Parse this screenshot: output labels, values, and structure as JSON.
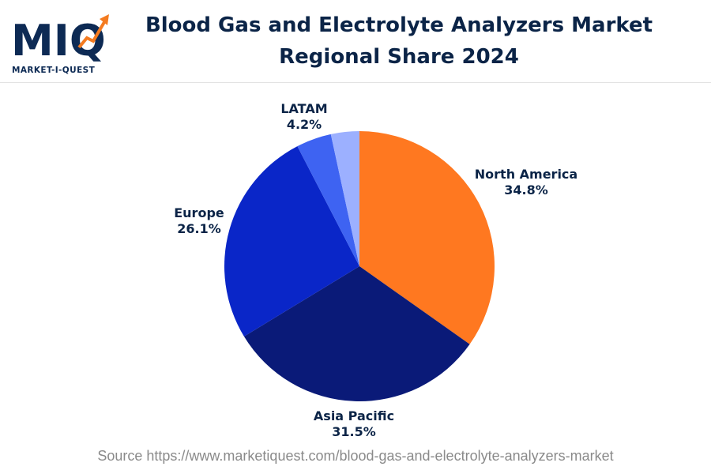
{
  "brand": {
    "logo_letters": "MIQ",
    "tagline": "MARKET-I-QUEST"
  },
  "colors": {
    "title": "#0b2447",
    "north_america": "#ff7820",
    "asia_pacific": "#0a1a78",
    "europe": "#0a26c8",
    "latam": "#3e63f2",
    "other": "#9cb0ff"
  },
  "chart_data": {
    "type": "pie",
    "title": "Blood Gas and Electrolyte Analyzers Market Regional Share 2024",
    "title_lines": [
      "Blood Gas and Electrolyte Analyzers Market",
      "Regional Share 2024"
    ],
    "slices": [
      {
        "label": "North America",
        "value": 34.8,
        "value_label": "34.8%",
        "color": "#ff7820"
      },
      {
        "label": "Asia Pacific",
        "value": 31.5,
        "value_label": "31.5%",
        "color": "#0a1a78"
      },
      {
        "label": "Europe",
        "value": 26.1,
        "value_label": "26.1%",
        "color": "#0a26c8"
      },
      {
        "label": "LATAM",
        "value": 4.2,
        "value_label": "4.2%",
        "color": "#3e63f2"
      },
      {
        "label": "",
        "value": 3.4,
        "value_label": "",
        "color": "#9cb0ff"
      }
    ],
    "start_angle_deg": 0,
    "direction": "clockwise"
  },
  "footer": {
    "source": "Source https://www.marketiquest.com/blood-gas-and-electrolyte-analyzers-market"
  }
}
